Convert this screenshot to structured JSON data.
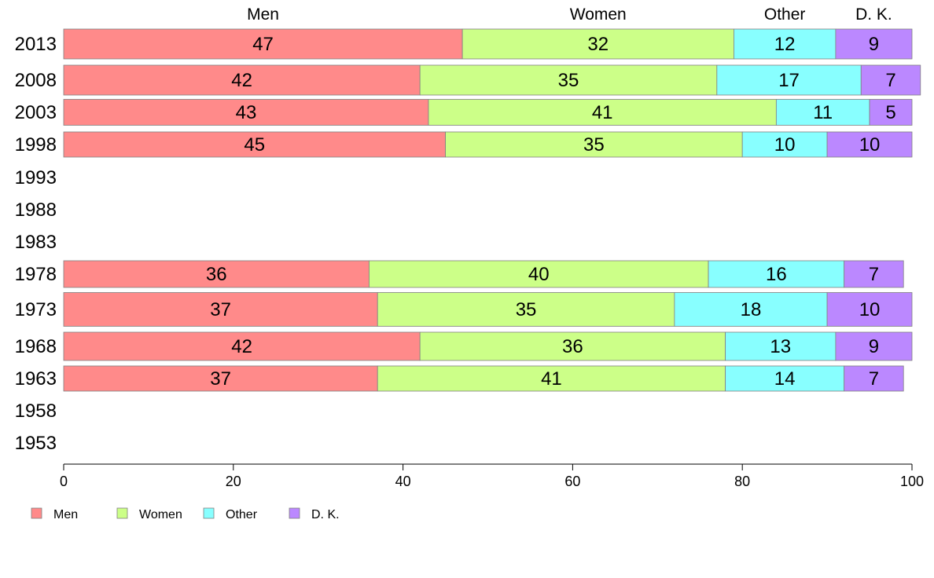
{
  "chart_data": {
    "type": "bar",
    "orientation": "horizontal",
    "stacked": true,
    "categories": [
      "2013",
      "2008",
      "2003",
      "1998",
      "1993",
      "1988",
      "1983",
      "1978",
      "1973",
      "1968",
      "1963",
      "1958",
      "1953"
    ],
    "series": [
      {
        "name": "Men",
        "color": "#ff8a8a",
        "values": [
          47,
          42,
          43,
          45,
          null,
          null,
          null,
          36,
          37,
          42,
          37,
          null,
          null
        ],
        "labels": [
          "47",
          "42",
          "43",
          "45",
          "",
          "",
          "",
          "36",
          "37",
          "42",
          "37",
          "",
          ""
        ]
      },
      {
        "name": "Women",
        "color": "#ccff88",
        "values": [
          32,
          35,
          41,
          35,
          null,
          null,
          null,
          40,
          35,
          36,
          41,
          null,
          null
        ],
        "labels": [
          "32",
          "35",
          "41",
          "35",
          "",
          "",
          "",
          "40",
          "35",
          "36",
          "41",
          "",
          ""
        ]
      },
      {
        "name": "Other",
        "color": "#88ffff",
        "values": [
          12,
          17,
          11,
          10,
          null,
          null,
          null,
          16,
          18,
          13,
          14,
          null,
          null
        ],
        "labels": [
          "12",
          "17",
          "11",
          "10",
          "",
          "",
          "",
          "16",
          "18",
          "13",
          "14",
          "",
          ""
        ]
      },
      {
        "name": "D. K.",
        "color": "#bb88ff",
        "values": [
          9,
          7,
          5,
          10,
          null,
          null,
          null,
          7,
          10,
          9,
          7,
          null,
          null
        ],
        "labels": [
          "9",
          "7",
          "5",
          "10",
          "",
          "",
          "",
          "7",
          "10",
          "9",
          "7",
          "",
          ""
        ]
      }
    ],
    "xlim": [
      0,
      100
    ],
    "xticks": [
      0,
      20,
      40,
      60,
      80,
      100
    ],
    "xtick_labels": [
      "0",
      "20",
      "40",
      "60",
      "80",
      "100"
    ],
    "grid": false,
    "legend": {
      "placement": "bottom-left",
      "entries": [
        "Men",
        "Women",
        "Other",
        "D. K."
      ]
    },
    "header_labels": [
      "Men",
      "Women",
      "Other",
      "D. K."
    ]
  }
}
